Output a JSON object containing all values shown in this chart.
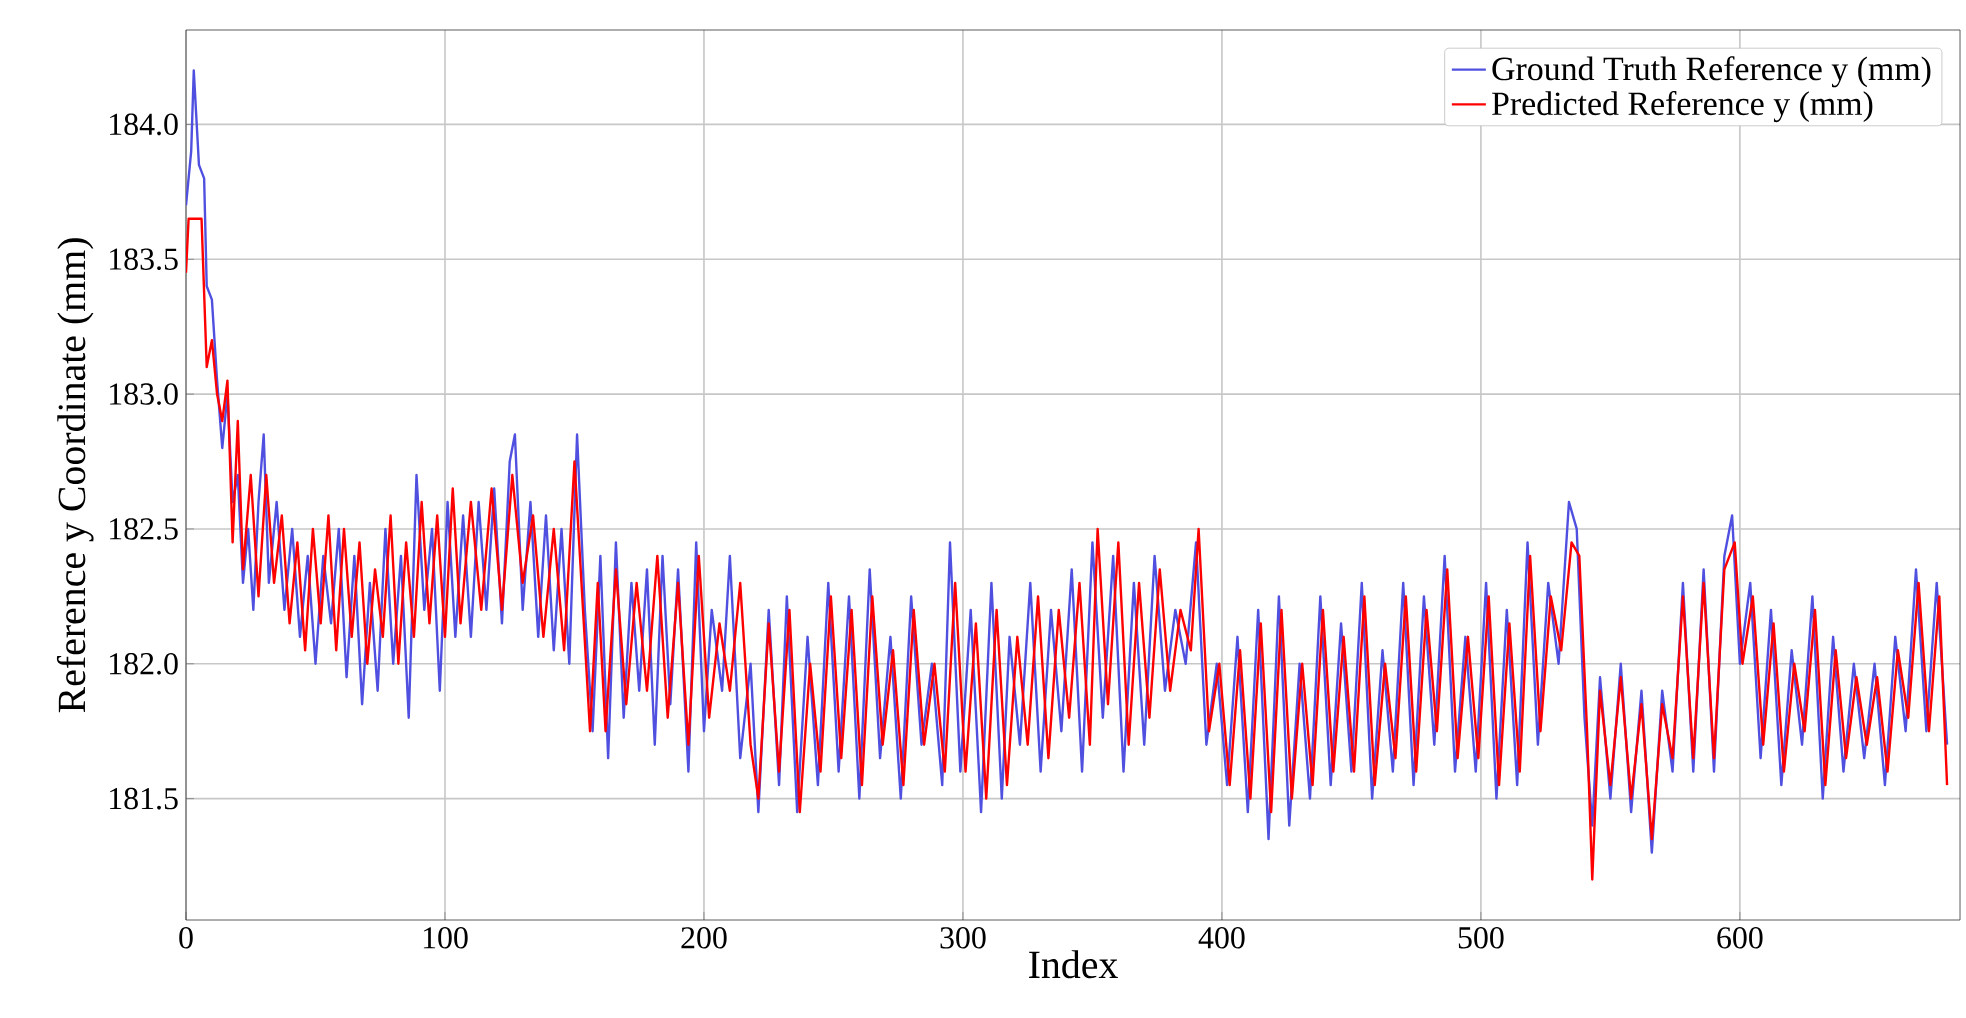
{
  "chart_data": {
    "type": "line",
    "xlabel": "Index",
    "ylabel": "Reference y Coordinate (mm)",
    "xlim": [
      0,
      685
    ],
    "ylim": [
      181.05,
      184.35
    ],
    "xticks": [
      0,
      100,
      200,
      300,
      400,
      500,
      600
    ],
    "yticks": [
      {
        "value": 181.5,
        "label": "181.5"
      },
      {
        "value": 182,
        "label": "182.0"
      },
      {
        "value": 182.5,
        "label": "182.5"
      },
      {
        "value": 183,
        "label": "183.0"
      },
      {
        "value": 183.5,
        "label": "183.5"
      },
      {
        "value": 184,
        "label": "184.0"
      }
    ],
    "grid": true,
    "legend": "top right",
    "marker": "none",
    "line_style": "solid",
    "series": [
      {
        "name": "Ground Truth Reference y (mm)",
        "color": "#5050e0",
        "x": [
          0,
          2,
          3,
          5,
          7,
          8,
          10,
          12,
          14,
          16,
          18,
          20,
          22,
          24,
          26,
          28,
          30,
          32,
          35,
          38,
          41,
          44,
          47,
          50,
          53,
          56,
          59,
          62,
          65,
          68,
          71,
          74,
          77,
          80,
          83,
          86,
          89,
          92,
          95,
          98,
          101,
          104,
          107,
          110,
          113,
          116,
          119,
          122,
          125,
          127,
          130,
          133,
          136,
          139,
          142,
          145,
          148,
          151,
          154,
          157,
          160,
          163,
          166,
          169,
          172,
          175,
          178,
          181,
          184,
          187,
          190,
          194,
          197,
          200,
          203,
          207,
          210,
          214,
          218,
          221,
          225,
          229,
          232,
          236,
          240,
          244,
          248,
          252,
          256,
          260,
          264,
          268,
          272,
          276,
          280,
          284,
          288,
          292,
          295,
          299,
          303,
          307,
          311,
          315,
          318,
          322,
          326,
          330,
          334,
          338,
          342,
          346,
          350,
          354,
          358,
          362,
          366,
          370,
          374,
          378,
          382,
          386,
          390,
          394,
          398,
          402,
          406,
          410,
          414,
          418,
          422,
          426,
          430,
          434,
          438,
          442,
          446,
          450,
          454,
          458,
          462,
          466,
          470,
          474,
          478,
          482,
          486,
          490,
          494,
          498,
          502,
          506,
          510,
          514,
          518,
          522,
          526,
          530,
          534,
          537,
          540,
          543,
          546,
          550,
          554,
          558,
          562,
          566,
          570,
          574,
          578,
          582,
          586,
          590,
          594,
          597,
          600,
          604,
          608,
          612,
          616,
          620,
          624,
          628,
          632,
          636,
          640,
          644,
          648,
          652,
          656,
          660,
          664,
          668,
          672,
          676,
          680
        ],
        "values": [
          183.7,
          183.9,
          184.2,
          183.85,
          183.8,
          183.4,
          183.35,
          183.05,
          182.8,
          183.0,
          182.6,
          182.7,
          182.3,
          182.5,
          182.2,
          182.6,
          182.85,
          182.3,
          182.6,
          182.2,
          182.5,
          182.1,
          182.4,
          182.0,
          182.4,
          182.15,
          182.5,
          181.95,
          182.4,
          181.85,
          182.3,
          181.9,
          182.5,
          182.0,
          182.4,
          181.8,
          182.7,
          182.2,
          182.5,
          181.9,
          182.6,
          182.1,
          182.55,
          182.1,
          182.6,
          182.2,
          182.65,
          182.15,
          182.75,
          182.85,
          182.2,
          182.6,
          182.1,
          182.55,
          182.05,
          182.5,
          182.0,
          182.85,
          182.2,
          181.75,
          182.4,
          181.65,
          182.45,
          181.8,
          182.3,
          181.9,
          182.35,
          181.7,
          182.4,
          181.85,
          182.35,
          181.6,
          182.45,
          181.75,
          182.2,
          181.9,
          182.4,
          181.65,
          182.0,
          181.45,
          182.2,
          181.55,
          182.25,
          181.45,
          182.1,
          181.55,
          182.3,
          181.6,
          182.25,
          181.5,
          182.35,
          181.65,
          182.1,
          181.5,
          182.25,
          181.7,
          182.0,
          181.55,
          182.45,
          181.6,
          182.2,
          181.45,
          182.3,
          181.5,
          182.1,
          181.7,
          182.3,
          181.6,
          182.2,
          181.75,
          182.35,
          181.6,
          182.45,
          181.8,
          182.4,
          181.6,
          182.3,
          181.7,
          182.4,
          181.9,
          182.2,
          182.0,
          182.45,
          181.7,
          182.0,
          181.55,
          182.1,
          181.45,
          182.2,
          181.35,
          182.25,
          181.4,
          182.0,
          181.5,
          182.25,
          181.55,
          182.15,
          181.6,
          182.3,
          181.5,
          182.05,
          181.6,
          182.3,
          181.55,
          182.25,
          181.7,
          182.4,
          181.6,
          182.1,
          181.6,
          182.3,
          181.5,
          182.2,
          181.55,
          182.45,
          181.7,
          182.3,
          182.0,
          182.6,
          182.5,
          181.8,
          181.4,
          181.95,
          181.5,
          182.0,
          181.45,
          181.9,
          181.3,
          181.9,
          181.6,
          182.3,
          181.6,
          182.35,
          181.6,
          182.4,
          182.55,
          182.0,
          182.3,
          181.65,
          182.2,
          181.55,
          182.05,
          181.7,
          182.25,
          181.5,
          182.1,
          181.6,
          182.0,
          181.65,
          182.0,
          181.55,
          182.1,
          181.75,
          182.35,
          181.75,
          182.3,
          181.7
        ]
      },
      {
        "name": "Predicted Reference y (mm)",
        "color": "#ff0000",
        "x": [
          0,
          1,
          6,
          8,
          10,
          12,
          14,
          16,
          18,
          20,
          22,
          25,
          28,
          31,
          34,
          37,
          40,
          43,
          46,
          49,
          52,
          55,
          58,
          61,
          64,
          67,
          70,
          73,
          76,
          79,
          82,
          85,
          88,
          91,
          94,
          97,
          100,
          103,
          106,
          110,
          114,
          118,
          122,
          126,
          130,
          134,
          138,
          142,
          146,
          150,
          153,
          156,
          159,
          162,
          166,
          170,
          174,
          178,
          182,
          186,
          190,
          194,
          198,
          202,
          206,
          210,
          214,
          218,
          221,
          225,
          229,
          233,
          237,
          241,
          245,
          249,
          253,
          257,
          261,
          265,
          269,
          273,
          277,
          281,
          285,
          289,
          293,
          297,
          301,
          305,
          309,
          313,
          317,
          321,
          325,
          329,
          333,
          337,
          341,
          345,
          349,
          352,
          356,
          360,
          364,
          368,
          372,
          376,
          380,
          384,
          388,
          391,
          395,
          399,
          403,
          407,
          411,
          415,
          419,
          423,
          427,
          431,
          435,
          439,
          443,
          447,
          451,
          455,
          459,
          463,
          467,
          471,
          475,
          479,
          483,
          487,
          491,
          495,
          499,
          503,
          507,
          511,
          515,
          519,
          523,
          527,
          531,
          535,
          538,
          541,
          543,
          546,
          550,
          554,
          558,
          562,
          566,
          570,
          574,
          578,
          582,
          586,
          590,
          594,
          598,
          601,
          605,
          609,
          613,
          617,
          621,
          625,
          629,
          633,
          637,
          641,
          645,
          649,
          653,
          657,
          661,
          665,
          669,
          673,
          677,
          680
        ],
        "values": [
          183.45,
          183.65,
          183.65,
          183.1,
          183.2,
          183.0,
          182.9,
          183.05,
          182.45,
          182.9,
          182.35,
          182.7,
          182.25,
          182.7,
          182.3,
          182.55,
          182.15,
          182.45,
          182.05,
          182.5,
          182.15,
          182.55,
          182.05,
          182.5,
          182.1,
          182.45,
          182.0,
          182.35,
          182.1,
          182.55,
          182.0,
          182.45,
          182.1,
          182.6,
          182.15,
          182.55,
          182.1,
          182.65,
          182.15,
          182.6,
          182.2,
          182.65,
          182.2,
          182.7,
          182.3,
          182.55,
          182.1,
          182.5,
          182.05,
          182.75,
          182.25,
          181.75,
          182.3,
          181.75,
          182.35,
          181.85,
          182.3,
          181.9,
          182.4,
          181.8,
          182.3,
          181.7,
          182.4,
          181.8,
          182.15,
          181.9,
          182.3,
          181.7,
          181.5,
          182.15,
          181.6,
          182.2,
          181.45,
          182.0,
          181.6,
          182.25,
          181.65,
          182.2,
          181.55,
          182.25,
          181.7,
          182.05,
          181.55,
          182.2,
          181.7,
          182.0,
          181.6,
          182.3,
          181.6,
          182.15,
          181.5,
          182.2,
          181.55,
          182.1,
          181.7,
          182.25,
          181.65,
          182.2,
          181.8,
          182.3,
          181.7,
          182.5,
          181.85,
          182.45,
          181.7,
          182.3,
          181.8,
          182.35,
          181.9,
          182.2,
          182.05,
          182.5,
          181.75,
          182.0,
          181.55,
          182.05,
          181.5,
          182.15,
          181.45,
          182.2,
          181.5,
          182.0,
          181.55,
          182.2,
          181.6,
          182.1,
          181.6,
          182.25,
          181.55,
          182.0,
          181.65,
          182.25,
          181.6,
          182.2,
          181.75,
          182.35,
          181.65,
          182.1,
          181.65,
          182.25,
          181.55,
          182.15,
          181.6,
          182.4,
          181.75,
          182.25,
          182.05,
          182.45,
          182.4,
          181.75,
          181.2,
          181.9,
          181.55,
          181.95,
          181.5,
          181.85,
          181.35,
          181.85,
          181.65,
          182.25,
          181.65,
          182.3,
          181.65,
          182.35,
          182.45,
          182.0,
          182.25,
          181.7,
          182.15,
          181.6,
          182.0,
          181.75,
          182.2,
          181.55,
          182.05,
          181.65,
          181.95,
          181.7,
          181.95,
          181.6,
          182.05,
          181.8,
          182.3,
          181.75,
          182.25,
          181.55
        ]
      }
    ]
  }
}
